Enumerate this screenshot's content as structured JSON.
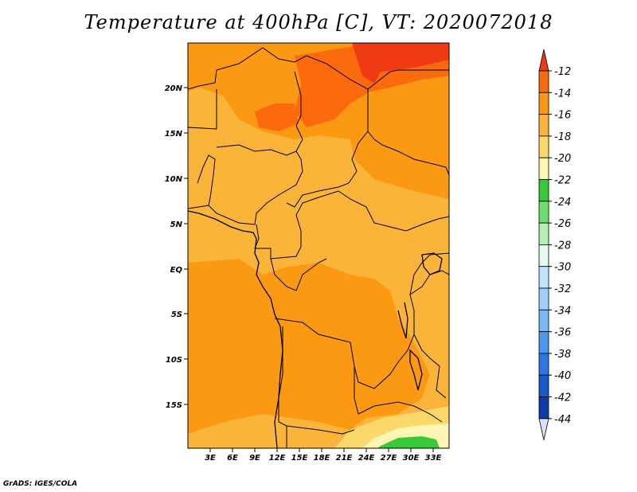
{
  "title": "Temperature at 400hPa [C], VT: 2020072018",
  "credit": "GrADS: IGES/COLA",
  "map": {
    "lat_labels": [
      "20N",
      "15N",
      "10N",
      "5N",
      "EQ",
      "5S",
      "10S",
      "15S"
    ],
    "lon_labels": [
      "3E",
      "6E",
      "9E",
      "12E",
      "15E",
      "18E",
      "21E",
      "24E",
      "27E",
      "30E",
      "33E"
    ]
  },
  "colorbar": {
    "labels": [
      "-12",
      "-14",
      "-16",
      "-18",
      "-20",
      "-22",
      "-24",
      "-26",
      "-28",
      "-30",
      "-32",
      "-34",
      "-36",
      "-38",
      "-40",
      "-42",
      "-44"
    ],
    "colors": {
      "top_arrow": "#ef3a14",
      "bins": [
        "#fb6a0c",
        "#fb9a12",
        "#fbb43a",
        "#fbd86a",
        "#fdf5b4",
        "#38c838",
        "#6ce06c",
        "#b4f0b4",
        "#e4fbf0",
        "#bfe4fb",
        "#9fd0fb",
        "#78b8f4",
        "#4c98ec",
        "#2c78e0",
        "#1858c8",
        "#0c3ca8"
      ],
      "bottom_arrow": "#dcdcfb"
    }
  }
}
